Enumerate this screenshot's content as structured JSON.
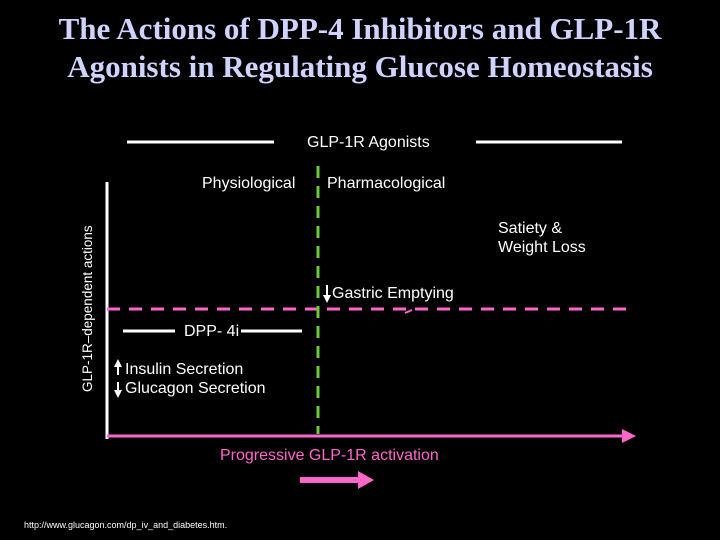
{
  "title": {
    "line1": "The Actions of DPP-4 Inhibitors and GLP-1R",
    "line2": "Agonists in Regulating Glucose Homeostasis"
  },
  "y_axis_label": "GLP-1R–dependent actions",
  "x_axis_label": "Progressive GLP-1R activation",
  "agonists_label": "GLP-1R Agonists",
  "dpp4i_label": "DPP- 4i",
  "physiological_label": "Physiological",
  "pharmacological_label": "Pharmacological",
  "satiety": {
    "line1": "Satiety &",
    "line2": "Weight Loss"
  },
  "gastric_label": "Gastric Emptying",
  "insulin_label": "Insulin Secretion",
  "glucagon_label": "Glucagon Secretion",
  "source_url": "http://www.glucagon.com/dp_iv_and_diabetes.htm.",
  "colors": {
    "background": "#000000",
    "title": "#cfd3ff",
    "axis_arrow": "#ff66cc",
    "threshold_dashed": "#66cc33",
    "text": "#ffffff"
  }
}
